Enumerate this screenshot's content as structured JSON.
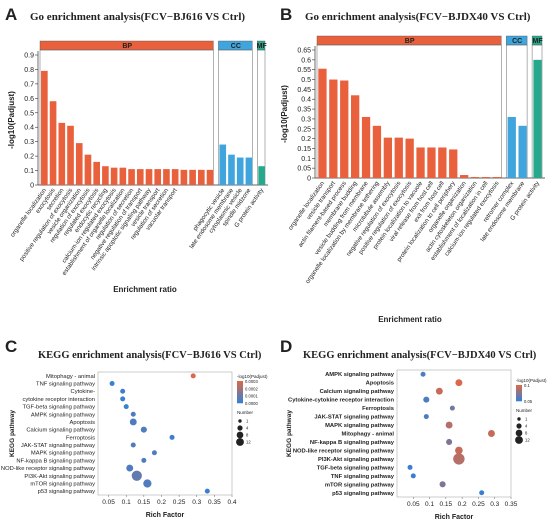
{
  "panels": {
    "A": {
      "letter": "A",
      "title": "Go enrichment analysis(FCV−BJ616 VS Ctrl)",
      "ylabel": "-log10(Padjust)",
      "xlabel": "Enrichment ratio"
    },
    "B": {
      "letter": "B",
      "title": "Go enrichment analysis(FCV−BJDX40 VS Ctrl)",
      "ylabel": "-log10(Padjust)",
      "xlabel": "Enrichment ratio"
    },
    "C": {
      "letter": "C",
      "title": "KEGG enrichment analysis(FCV−BJ616 VS Ctrl)",
      "ylabel": "KEGG pathway",
      "xlabel": "Rich Factor",
      "legend_color_title": "-log10(Padjust)",
      "legend_size_title": "Number"
    },
    "D": {
      "letter": "D",
      "title": "KEGG enrichment analysis(FCV−BJDX40 VS Ctrl)",
      "ylabel": "KEGG pathway",
      "xlabel": "Rich Factor",
      "legend_color_title": "-log10(Padjust)",
      "legend_size_title": "Number"
    }
  },
  "colors": {
    "bp": "#e8603c",
    "cc": "#3fa5dc",
    "mf": "#26a88c",
    "dot_high": "#d9694a",
    "dot_low": "#3b7fd0"
  },
  "chart_data": [
    {
      "id": "A",
      "type": "bar",
      "title": "Go enrichment analysis(FCV−BJ616 VS Ctrl)",
      "ylabel": "-log10(Padjust)",
      "xlabel": "Enrichment ratio",
      "ylim": [
        0,
        0.9
      ],
      "yticks": [
        0,
        0.1,
        0.2,
        0.3,
        0.4,
        0.5,
        0.6,
        0.7,
        0.8,
        0.9
      ],
      "groups": [
        {
          "name": "BP",
          "count": 20
        },
        {
          "name": "CC",
          "count": 4
        },
        {
          "name": "MF",
          "count": 1
        }
      ],
      "categories": [
        "organelle localization",
        "exocytosis",
        "secretion",
        "positive regulation of exocytosis",
        "vesicle organization",
        "regulation of exocytosis",
        "regulated exocytosis",
        "endocytic recycling",
        "calcium-ion regulated exocytosis",
        "establishment of organelle localization",
        "regulation of secretion",
        "negative regulation of transport",
        "intrinsic apoptotic signaling pathway",
        "vesicle transport",
        "regulation of secretion",
        "vacuolar transport",
        "",
        "",
        "",
        "",
        "phagocytic vesicle",
        "late endosome membrane",
        "cytoplasmic vesicle",
        "spindle midzone",
        "G protein activity"
      ],
      "values": [
        0.79,
        0.58,
        0.43,
        0.41,
        0.29,
        0.21,
        0.16,
        0.13,
        0.12,
        0.12,
        0.11,
        0.11,
        0.11,
        0.11,
        0.11,
        0.11,
        0.105,
        0.105,
        0.105,
        0.105,
        0.28,
        0.21,
        0.19,
        0.19,
        0.13
      ]
    },
    {
      "id": "B",
      "type": "bar",
      "title": "Go enrichment analysis(FCV−BJDX40 VS Ctrl)",
      "ylabel": "-log10(Padjust)",
      "xlabel": "Enrichment ratio",
      "ylim": [
        0,
        0.65
      ],
      "yticks": [
        0,
        0.05,
        0.1,
        0.15,
        0.2,
        0.25,
        0.3,
        0.35,
        0.4,
        0.45,
        0.5,
        0.55,
        0.6,
        0.65
      ],
      "groups": [
        {
          "name": "BP",
          "count": 17
        },
        {
          "name": "CC",
          "count": 2
        },
        {
          "name": "MF",
          "count": 1
        }
      ],
      "categories": [
        "organelle localization",
        "vesicle transport",
        "actin filament-based process",
        "membrane budding",
        "vesicle budding from membrane",
        "organelle localization by membrane tethering",
        "microtubule assembly",
        "negative regulation of exocytosis",
        "positive regulation of exocytosis",
        "protein localization to vacuole",
        "viral release from host cell",
        "exit from host cell",
        "protein localization to cell periphery",
        "organelle organization",
        "actin cytoskeleton organization",
        "establishment of localization in cell",
        "calcium-ion regulated exocytosis",
        "retromer complex",
        "late endosome membrane",
        "G protein activity"
      ],
      "values": [
        0.555,
        0.5,
        0.495,
        0.42,
        0.31,
        0.265,
        0.205,
        0.205,
        0.2,
        0.155,
        0.155,
        0.155,
        0.145,
        0.015,
        0.005,
        0.005,
        0.005,
        0.31,
        0.265,
        0.6
      ]
    },
    {
      "id": "C",
      "type": "scatter",
      "title": "KEGG enrichment analysis(FCV−BJ616 VS Ctrl)",
      "ylabel": "KEGG pathway",
      "xlabel": "Rich Factor",
      "xlim": [
        0.02,
        0.4
      ],
      "xticks": [
        0.05,
        0.1,
        0.15,
        0.2,
        0.25,
        0.3,
        0.35,
        0.4
      ],
      "categories": [
        "Mitophagy - animal",
        "TNF signaling pathway",
        "Cytokine-",
        "cytokine receptor interaction",
        "TGF-beta signaling pathway",
        "AMPK signaling pathway",
        "Apoptosis",
        "Calcium signaling pathway",
        "Ferroptosis",
        "JAK-STAT signaling pathway",
        "MAPK signaling pathway",
        "NF-kappa B signaling pathway",
        "NOD-like receptor signaling pathway",
        "PI3K-Akt signaling pathway",
        "mTOR signaling pathway",
        "p53 signaling pathway"
      ],
      "x": [
        0.29,
        0.06,
        0.09,
        0.09,
        0.1,
        0.12,
        0.12,
        0.15,
        0.23,
        0.12,
        0.18,
        0.15,
        0.11,
        0.13,
        0.16,
        0.33
      ],
      "number": [
        1,
        1,
        1,
        1,
        1,
        1,
        3,
        2,
        1,
        1,
        1,
        1,
        3,
        9,
        5,
        1
      ],
      "padjust_log": [
        0.09,
        0.01,
        0.01,
        0.01,
        0.01,
        0.02,
        0.02,
        0.02,
        0.01,
        0.02,
        0.02,
        0.02,
        0.02,
        0.03,
        0.02,
        0.01
      ],
      "color_legend": [
        "0.0003",
        "0.0002",
        "0.0001",
        "0.0000"
      ],
      "size_legend": [
        1,
        4,
        8,
        12
      ]
    },
    {
      "id": "D",
      "type": "scatter",
      "title": "KEGG enrichment analysis(FCV−BJDX40 VS Ctrl)",
      "ylabel": "KEGG pathway",
      "xlabel": "Rich Factor",
      "xlim": [
        0,
        0.35
      ],
      "xticks": [
        0.05,
        0.1,
        0.15,
        0.2,
        0.25,
        0.3,
        0.35
      ],
      "categories": [
        "AMPK signaling pathway",
        "Apoptosis",
        "Calcium signaling pathway",
        "Cytokine-cytokine receptor interaction",
        "Ferroptosis",
        "JAK-STAT signaling pathway",
        "MAPK signaling pathway",
        "Mitophagy - animal",
        "NF-kappa B signaling pathway",
        "NOD-like receptor signaling pathway",
        "PI3K-Akt signaling pathway",
        "TGF-beta signaling pathway",
        "TNF signaling pathway",
        "mTOR signaling pathway",
        "p53 signaling pathway"
      ],
      "x": [
        0.08,
        0.19,
        0.13,
        0.09,
        0.17,
        0.09,
        0.16,
        0.29,
        0.16,
        0.19,
        0.19,
        0.04,
        0.05,
        0.14,
        0.26
      ],
      "number": [
        1,
        3,
        3,
        2,
        1,
        1,
        3,
        3,
        2,
        4,
        12,
        1,
        1,
        2,
        1
      ],
      "padjust_log": [
        0.02,
        0.1,
        0.09,
        0.02,
        0.04,
        0.02,
        0.08,
        0.09,
        0.05,
        0.09,
        0.08,
        0.01,
        0.01,
        0.05,
        0.01
      ],
      "color_legend": [
        "0.1",
        "0.05"
      ],
      "size_legend": [
        1,
        4,
        8,
        12
      ]
    }
  ]
}
